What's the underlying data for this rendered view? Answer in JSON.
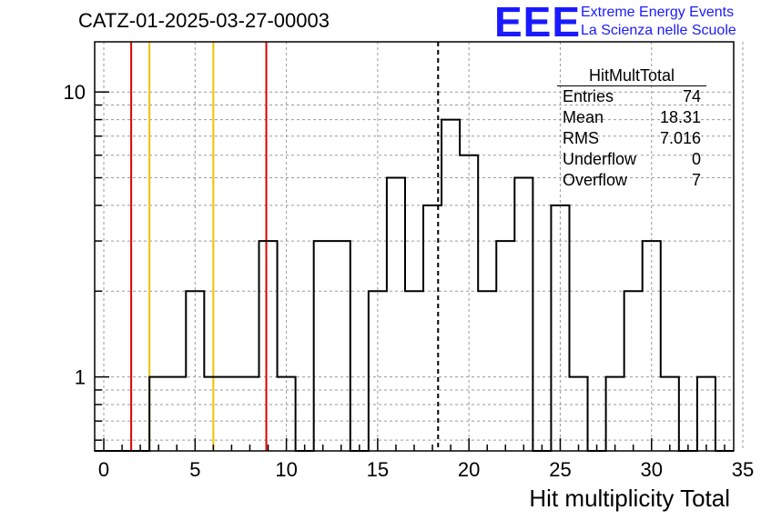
{
  "title": "CATZ-01-2025-03-27-00003",
  "logo": {
    "mark": "EEE",
    "line1": "Extreme Energy Events",
    "line2": "La Scienza nelle Scuole",
    "color": "#1a1aff"
  },
  "stats": {
    "name": "HitMultTotal",
    "rows": [
      {
        "label": "Entries",
        "value": "74"
      },
      {
        "label": "Mean",
        "value": "18.31"
      },
      {
        "label": "RMS",
        "value": "7.016"
      },
      {
        "label": "Underflow",
        "value": "0"
      },
      {
        "label": "Overflow",
        "value": "7"
      }
    ]
  },
  "chart_data": {
    "type": "histogram",
    "xlabel": "Hit multiplicity Total",
    "ylabel": "",
    "xlim": [
      -0.5,
      34.5
    ],
    "ylim": [
      0.55,
      15
    ],
    "yscale": "log",
    "grid": true,
    "bin_width": 1,
    "bin_start": -0.5,
    "counts": [
      0,
      0,
      0,
      1,
      1,
      2,
      1,
      1,
      1,
      3,
      1,
      0,
      3,
      3,
      0,
      2,
      5,
      2,
      4,
      8,
      6,
      2,
      3,
      5,
      0,
      4,
      1,
      0,
      1,
      2,
      3,
      1,
      0,
      1,
      0
    ],
    "x_ticks": [
      0,
      5,
      10,
      15,
      20,
      25,
      30,
      35
    ],
    "y_ticks": [
      1,
      10
    ],
    "vertical_lines": [
      {
        "x": 1.5,
        "color": "#e00000",
        "style": "solid"
      },
      {
        "x": 2.5,
        "color": "#f0c000",
        "style": "solid"
      },
      {
        "x": 6.0,
        "color": "#f0c000",
        "style": "solid"
      },
      {
        "x": 8.9,
        "color": "#e00000",
        "style": "solid"
      },
      {
        "x": 18.31,
        "color": "#000000",
        "style": "dashed"
      }
    ]
  }
}
